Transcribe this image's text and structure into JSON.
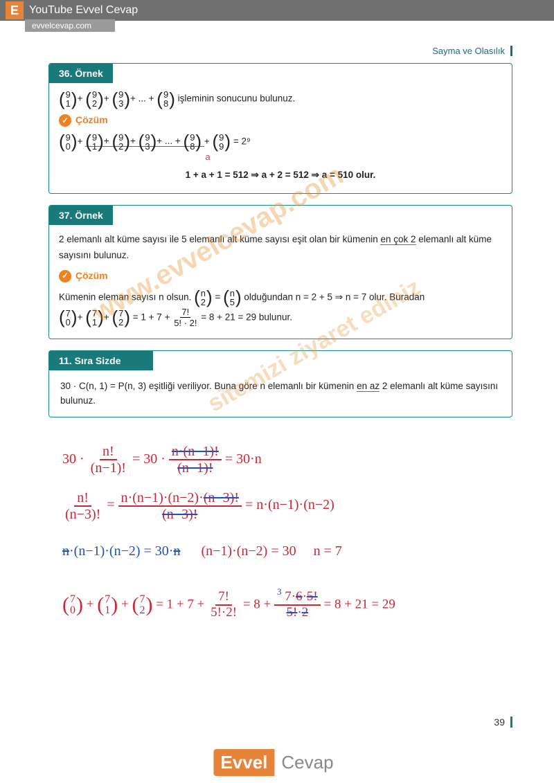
{
  "topBanner": {
    "badge": "E",
    "text": "YouTube Evvel Cevap",
    "sub": "evvelcevap.com"
  },
  "pageHeader": "Sayma ve Olasılık",
  "ex36": {
    "header": "36. Örnek",
    "problem_suffix": " işleminin sonucunu bulunuz.",
    "cozum": "Çözüm",
    "result": "1 + a + 1 = 512 ⇒ a + 2 = 512 ⇒ a = 510 olur.",
    "a_label": "a",
    "eq_rhs": "= 2⁹"
  },
  "ex37": {
    "header": "37. Örnek",
    "problem": "2 elemanlı alt küme sayısı ile 5 elemanlı alt küme sayısı eşit olan bir kümenin ",
    "problem_u": "en çok 2",
    "problem_end": " elemanlı alt küme sayısını bulunuz.",
    "cozum": "Çözüm",
    "sol1_a": "Kümenin eleman sayısı n olsun. ",
    "sol1_b": " olduğundan n = 2 + 5 ⇒ n = 7 olur. Buradan",
    "sol2_suffix": " = 1 + 7 + ",
    "sol2_end": " = 8 + 21 = 29 bulunur.",
    "frac_num": "7!",
    "frac_den": "5! · 2!"
  },
  "sira11": {
    "header": "11. Sıra Sizde",
    "body_a": "30 · C(n, 1) = P(n, 3)  eşitliği veriliyor. Buna göre n elemanlı bir kümenin ",
    "body_u": "en az",
    "body_b": " 2 elemanlı alt küme sayısını bulunuz."
  },
  "handwriting": {
    "l1a": "30 · ",
    "l1_f1_num": "n!",
    "l1_f1_den": "(n−1)!",
    "l1b": " = 30 · ",
    "l1_f2_num": "n·(n−1)!",
    "l1_f2_den": "(n−1)!",
    "l1c": " = 30·n",
    "l2_f1_num": "n!",
    "l2_f1_den": "(n−3)!",
    "l2a": " = ",
    "l2_f2_num": "n·(n−1)·(n−2)·(n−3)!",
    "l2_f2_den": "(n−3)!",
    "l2b": " = n·(n−1)·(n−2)",
    "l3a": "n·(n−1)·(n−2) = 30·n",
    "l3b": "(n−1)·(n−2) = 30",
    "l3c": "n = 7",
    "l4_b1": "7  0",
    "l4_b2": "7  1",
    "l4_b3": "7  2",
    "l4a": " = 1 + 7 + ",
    "l4_f1_num": "7!",
    "l4_f1_den": "5!·2!",
    "l4b": " = 8 + ",
    "l4_f2_num": "7·6·5!",
    "l4_f2_den": "5!·2",
    "l4_top3": "3",
    "l4c": " = 8 + 21 = 29"
  },
  "pageNum": "39",
  "footer": {
    "a": "Evvel",
    "b": "Cevap"
  },
  "watermark": "www.evvelcevap.com",
  "watermark2": "sitemizi ziyaret ediniz",
  "binoms": {
    "n91": {
      "t": "9",
      "b": "1"
    },
    "n92": {
      "t": "9",
      "b": "2"
    },
    "n93": {
      "t": "9",
      "b": "3"
    },
    "n98": {
      "t": "9",
      "b": "8"
    },
    "n90": {
      "t": "9",
      "b": "0"
    },
    "n99": {
      "t": "9",
      "b": "9"
    },
    "nn2": {
      "t": "n",
      "b": "2"
    },
    "nn5": {
      "t": "n",
      "b": "5"
    },
    "n70": {
      "t": "7",
      "b": "0"
    },
    "n71": {
      "t": "7",
      "b": "1"
    },
    "n72": {
      "t": "7",
      "b": "2"
    }
  }
}
